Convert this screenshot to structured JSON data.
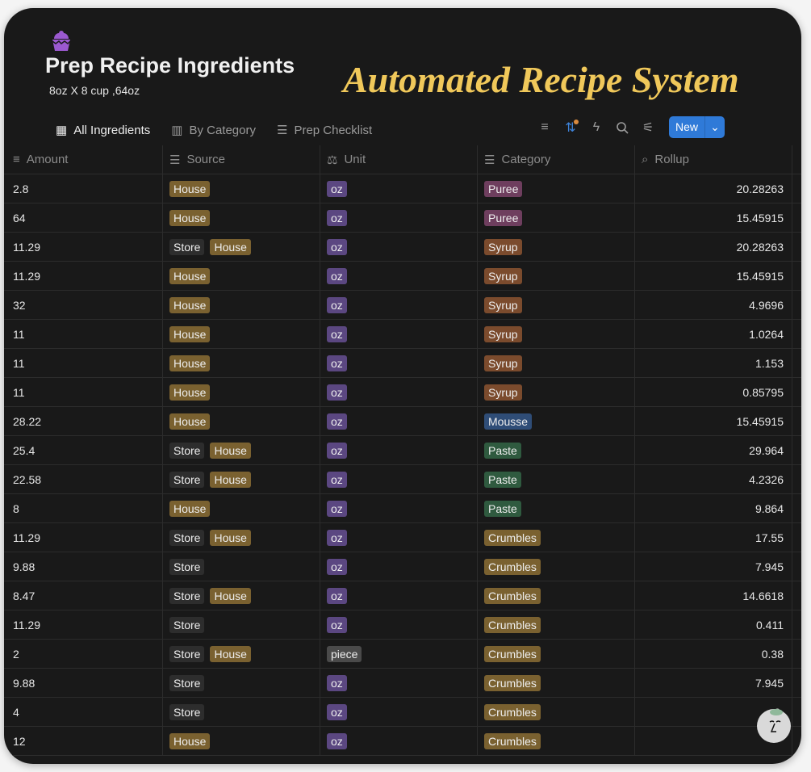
{
  "page": {
    "title": "Prep Recipe Ingredients",
    "subtitle": "8oz X 8 cup ,64oz",
    "icon": "cupcake-icon"
  },
  "tabs": [
    {
      "label": "All Ingredients",
      "icon": "table-icon"
    },
    {
      "label": "By Category",
      "icon": "board-icon"
    },
    {
      "label": "Prep Checklist",
      "icon": "list-icon"
    }
  ],
  "toolbar": {
    "new_label": "New",
    "sort_active": true
  },
  "columns": [
    {
      "label": "Amount",
      "icon": "text-icon"
    },
    {
      "label": "Source",
      "icon": "multiselect-icon"
    },
    {
      "label": "Unit",
      "icon": "scale-icon"
    },
    {
      "label": "Category",
      "icon": "multiselect-icon"
    },
    {
      "label": "Rollup",
      "icon": "search-icon"
    }
  ],
  "tag_colors": {
    "House": "#7a6130",
    "Store": "#2d2d2d",
    "oz": "#5b4781",
    "piece": "#4a4a4a",
    "Puree": "#6e3e5e",
    "Syrup": "#7b4b2d",
    "Mousse": "#2f4d77",
    "Paste": "#2f5a3f",
    "Crumbles": "#7a6130"
  },
  "rows": [
    {
      "amount": "2.8",
      "source": [
        "House"
      ],
      "unit": "oz",
      "category": "Puree",
      "rollup": "20.28263"
    },
    {
      "amount": "64",
      "source": [
        "House"
      ],
      "unit": "oz",
      "category": "Puree",
      "rollup": "15.45915"
    },
    {
      "amount": "11.29",
      "source": [
        "Store",
        "House"
      ],
      "unit": "oz",
      "category": "Syrup",
      "rollup": "20.28263"
    },
    {
      "amount": "11.29",
      "source": [
        "House"
      ],
      "unit": "oz",
      "category": "Syrup",
      "rollup": "15.45915"
    },
    {
      "amount": "32",
      "source": [
        "House"
      ],
      "unit": "oz",
      "category": "Syrup",
      "rollup": "4.9696"
    },
    {
      "amount": "11",
      "source": [
        "House"
      ],
      "unit": "oz",
      "category": "Syrup",
      "rollup": "1.0264"
    },
    {
      "amount": "11",
      "source": [
        "House"
      ],
      "unit": "oz",
      "category": "Syrup",
      "rollup": "1.153"
    },
    {
      "amount": "11",
      "source": [
        "House"
      ],
      "unit": "oz",
      "category": "Syrup",
      "rollup": "0.85795"
    },
    {
      "amount": "28.22",
      "source": [
        "House"
      ],
      "unit": "oz",
      "category": "Mousse",
      "rollup": "15.45915"
    },
    {
      "amount": "25.4",
      "source": [
        "Store",
        "House"
      ],
      "unit": "oz",
      "category": "Paste",
      "rollup": "29.964"
    },
    {
      "amount": "22.58",
      "source": [
        "Store",
        "House"
      ],
      "unit": "oz",
      "category": "Paste",
      "rollup": "4.2326"
    },
    {
      "amount": "8",
      "source": [
        "House"
      ],
      "unit": "oz",
      "category": "Paste",
      "rollup": "9.864"
    },
    {
      "amount": "11.29",
      "source": [
        "Store",
        "House"
      ],
      "unit": "oz",
      "category": "Crumbles",
      "rollup": "17.55"
    },
    {
      "amount": "9.88",
      "source": [
        "Store"
      ],
      "unit": "oz",
      "category": "Crumbles",
      "rollup": "7.945"
    },
    {
      "amount": "8.47",
      "source": [
        "Store",
        "House"
      ],
      "unit": "oz",
      "category": "Crumbles",
      "rollup": "14.6618"
    },
    {
      "amount": "11.29",
      "source": [
        "Store"
      ],
      "unit": "oz",
      "category": "Crumbles",
      "rollup": "0.411"
    },
    {
      "amount": "2",
      "source": [
        "Store",
        "House"
      ],
      "unit": "piece",
      "category": "Crumbles",
      "rollup": "0.38"
    },
    {
      "amount": "9.88",
      "source": [
        "Store"
      ],
      "unit": "oz",
      "category": "Crumbles",
      "rollup": "7.945"
    },
    {
      "amount": "4",
      "source": [
        "Store"
      ],
      "unit": "oz",
      "category": "Crumbles",
      "rollup": "0."
    },
    {
      "amount": "12",
      "source": [
        "House"
      ],
      "unit": "oz",
      "category": "Crumbles",
      "rollup": ""
    }
  ],
  "watermark": "Automated Recipe System"
}
